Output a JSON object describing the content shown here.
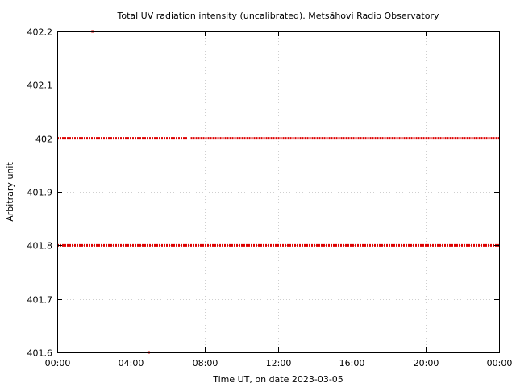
{
  "chart_data": {
    "type": "scatter",
    "title": "Total UV radiation intensity (uncalibrated). Metsähovi Radio Observatory",
    "xlabel": "Time UT, on date 2023-03-05",
    "ylabel": "Arbitrary unit",
    "xlim": [
      "00:00",
      "24:00"
    ],
    "ylim": [
      401.6,
      402.2
    ],
    "x_ticks": [
      "00:00",
      "04:00",
      "08:00",
      "12:00",
      "16:00",
      "20:00",
      "00:00"
    ],
    "y_ticks": [
      "401.6",
      "401.7",
      "401.8",
      "401.9",
      "402",
      "402.1",
      "402.2"
    ],
    "grid": true,
    "color": "#dd0000",
    "series": [
      {
        "values_level": 402.0,
        "x_ranges": [
          [
            "00:00",
            "07:05"
          ],
          [
            "07:15",
            "24:00"
          ]
        ]
      },
      {
        "values_level": 401.8,
        "x_ranges": [
          [
            "00:00",
            "24:00"
          ]
        ]
      }
    ],
    "outliers": [
      {
        "x": "01:55",
        "y": 402.2
      },
      {
        "x": "04:58",
        "y": 401.6
      }
    ]
  }
}
